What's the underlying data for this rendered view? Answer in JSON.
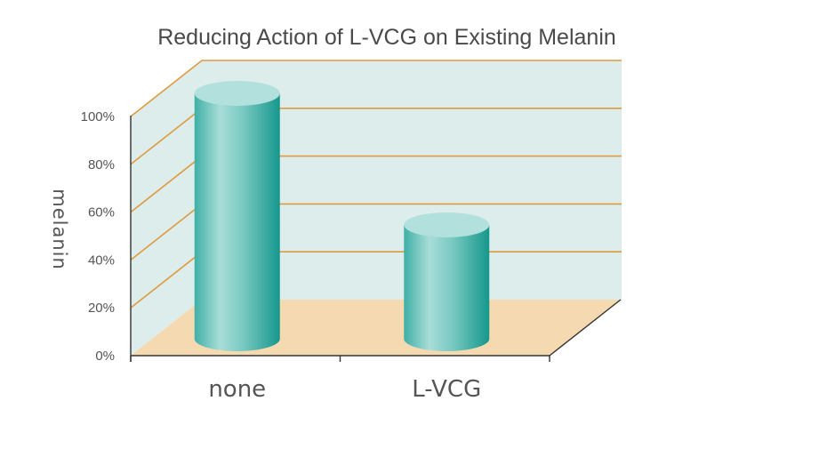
{
  "chart_data": {
    "type": "bar",
    "title": "Reducing Action of L-VCG on Existing Melanin",
    "xlabel": "",
    "ylabel": "melanin",
    "categories": [
      "none",
      "L-VCG"
    ],
    "values": [
      100,
      45
    ],
    "ylim": [
      0,
      100
    ],
    "yticks": [
      "0%",
      "20%",
      "40%",
      "60%",
      "80%",
      "100%"
    ],
    "grid": true,
    "legend": "none",
    "colors": {
      "wall": "#dcedec",
      "floor": "#f5d9b0",
      "gridline": "#e09a3e",
      "bar_dark": "#1a9c93",
      "bar_light": "#a4dad5",
      "bar_top": "#b2e0dc",
      "axis": "#333333"
    }
  }
}
